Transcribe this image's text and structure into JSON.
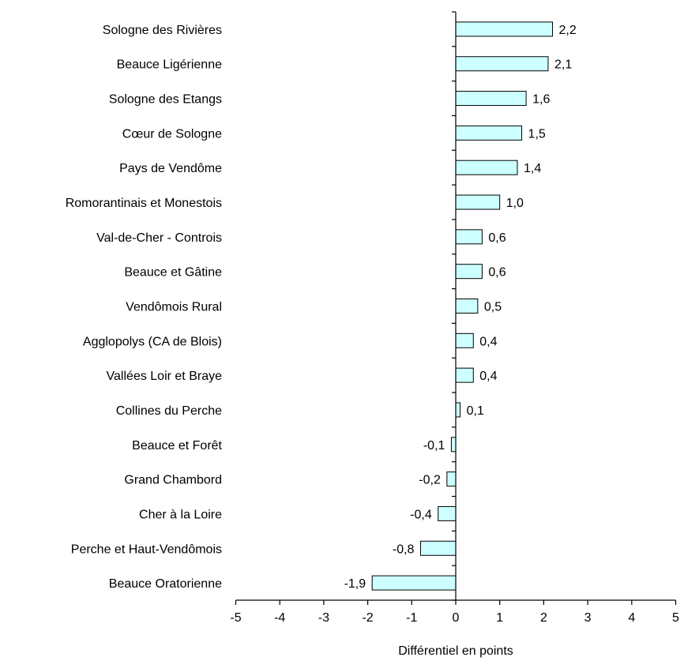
{
  "chart_data": {
    "type": "bar",
    "orientation": "horizontal",
    "categories": [
      "Sologne des Rivières",
      "Beauce Ligérienne",
      "Sologne des Etangs",
      "Cœur de Sologne",
      "Pays de Vendôme",
      "Romorantinais et  Monestois",
      "Val-de-Cher - Controis",
      "Beauce et Gâtine",
      "Vendômois Rural",
      "Agglopolys (CA de Blois)",
      "Vallées Loir et Braye",
      "Collines du Perche",
      "Beauce et Forêt",
      "Grand Chambord",
      "Cher à la Loire",
      "Perche et Haut-Vendômois",
      "Beauce Oratorienne"
    ],
    "values": [
      2.2,
      2.1,
      1.6,
      1.5,
      1.4,
      1.0,
      0.6,
      0.6,
      0.5,
      0.4,
      0.4,
      0.1,
      -0.1,
      -0.2,
      -0.4,
      -0.8,
      -1.9
    ],
    "value_labels": [
      "2,2",
      "2,1",
      "1,6",
      "1,5",
      "1,4",
      "1,0",
      "0,6",
      "0,6",
      "0,5",
      "0,4",
      "0,4",
      "0,1",
      "-0,1",
      "-0,2",
      "-0,4",
      "-0,8",
      "-1,9"
    ],
    "xlabel": "Différentiel en points",
    "xlim": [
      -5,
      5
    ],
    "xticks": [
      "-5",
      "-4",
      "-3",
      "-2",
      "-1",
      "0",
      "1",
      "2",
      "3",
      "4",
      "5"
    ],
    "grid": false,
    "bar_color": "#ccffff"
  }
}
